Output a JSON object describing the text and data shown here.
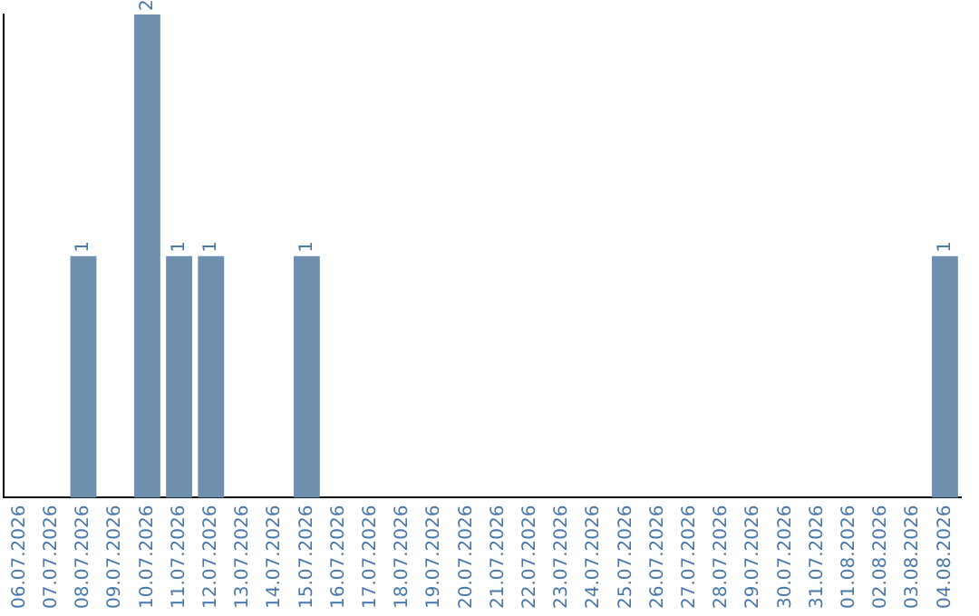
{
  "chart_data": {
    "type": "bar",
    "categories": [
      "06.07.2026",
      "07.07.2026",
      "08.07.2026",
      "09.07.2026",
      "10.07.2026",
      "11.07.2026",
      "12.07.2026",
      "13.07.2026",
      "14.07.2026",
      "15.07.2026",
      "16.07.2026",
      "17.07.2026",
      "18.07.2026",
      "19.07.2026",
      "20.07.2026",
      "21.07.2026",
      "22.07.2026",
      "23.07.2026",
      "24.07.2026",
      "25.07.2026",
      "26.07.2026",
      "27.07.2026",
      "28.07.2026",
      "29.07.2026",
      "30.07.2026",
      "31.07.2026",
      "01.08.2026",
      "02.08.2026",
      "03.08.2026",
      "04.08.2026"
    ],
    "values": [
      0,
      0,
      1,
      0,
      2,
      1,
      1,
      0,
      0,
      1,
      0,
      0,
      0,
      0,
      0,
      0,
      0,
      0,
      0,
      0,
      0,
      0,
      0,
      0,
      0,
      0,
      0,
      0,
      0,
      1
    ],
    "value_labels": [
      null,
      null,
      "1",
      null,
      "2",
      "1",
      "1",
      null,
      null,
      "1",
      null,
      null,
      null,
      null,
      null,
      null,
      null,
      null,
      null,
      null,
      null,
      null,
      null,
      null,
      null,
      null,
      null,
      null,
      null,
      "1"
    ],
    "color": "#6e8fad",
    "ylim": [
      0,
      2
    ],
    "tick_labels": "x",
    "grid": false,
    "legend": false
  }
}
